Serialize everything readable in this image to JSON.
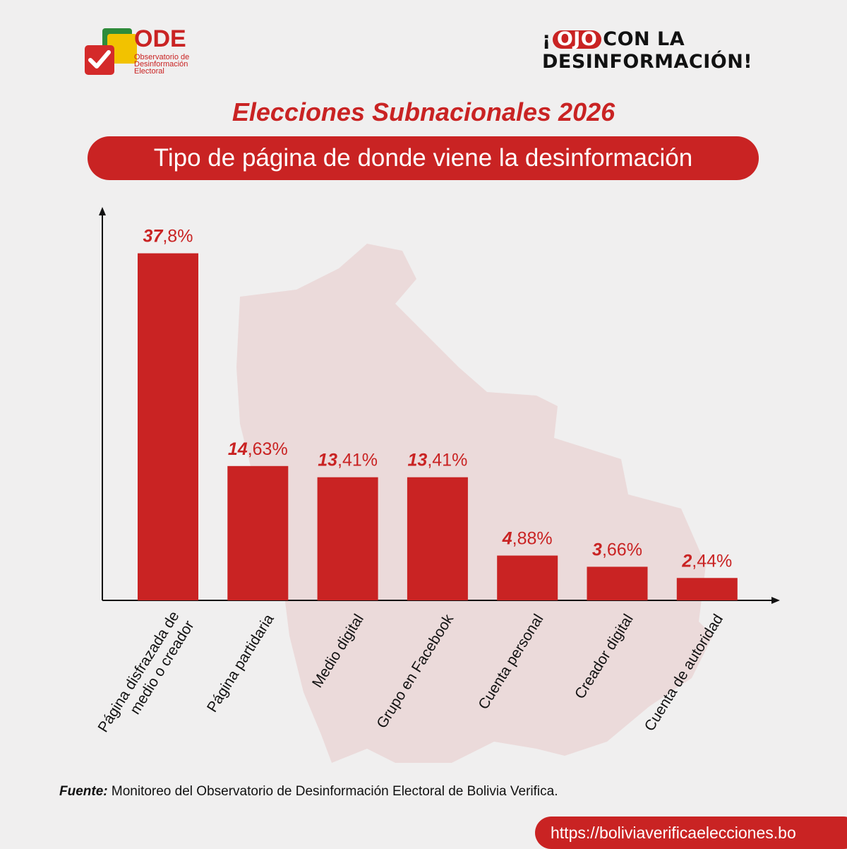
{
  "logo": {
    "name": "ODE",
    "tagline_1": "Observatorio de",
    "tagline_2": "Desinformación",
    "tagline_3": "Electoral"
  },
  "campaign": {
    "open_mark": "¡",
    "ojo": "OJO",
    "rest_line_1": "CON LA",
    "line_2": "DESINFORMACIÓN!"
  },
  "title": "Elecciones Subnacionales 2026",
  "subtitle": "Tipo de página de donde viene la desinformación",
  "colors": {
    "accent": "#c92323",
    "background": "#f0efef",
    "text": "#111111"
  },
  "chart_data": {
    "type": "bar",
    "categories": [
      [
        "Página disfrazada de",
        "medio o creador"
      ],
      [
        "Página partidaria"
      ],
      [
        "Medio digital"
      ],
      [
        "Grupo en Facebook"
      ],
      [
        "Cuenta personal"
      ],
      [
        "Creador digital"
      ],
      [
        "Cuenta de autoridad"
      ]
    ],
    "values": [
      37.8,
      14.63,
      13.41,
      13.41,
      4.88,
      3.66,
      2.44
    ],
    "value_labels": [
      {
        "int": "37",
        "dec": ",8%"
      },
      {
        "int": "14",
        "dec": ",63%"
      },
      {
        "int": "13",
        "dec": ",41%"
      },
      {
        "int": "13",
        "dec": ",41%"
      },
      {
        "int": "4",
        "dec": ",88%"
      },
      {
        "int": "3",
        "dec": ",66%"
      },
      {
        "int": "2",
        "dec": ",44%"
      }
    ],
    "ylim": [
      0,
      40
    ],
    "bar_color": "#c92323"
  },
  "source": {
    "label": "Fuente:",
    "text": " Monitoreo del Observatorio de Desinformación Electoral de Bolivia Verifica."
  },
  "url": "https://boliviaverificaelecciones.bo"
}
